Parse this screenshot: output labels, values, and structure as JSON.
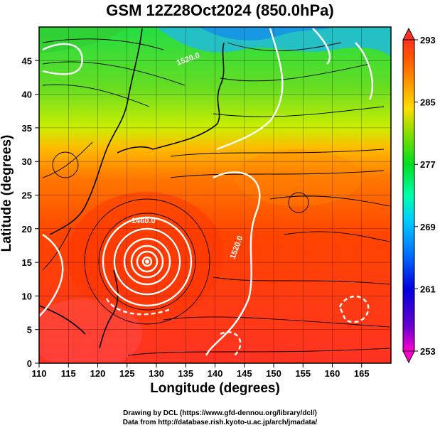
{
  "title": "GSM 12Z28Oct2024 (850.0hPa)",
  "xlabel": "Longitude (degrees)",
  "ylabel": "Latitude  (degrees)",
  "credits": [
    "Drawing by DCL (https://www.gfd-dennou.org/library/dcl/)",
    "Data from http://database.rish.kyoto-u.ac.jp/arch/jmadata/"
  ],
  "map": {
    "lon_range": [
      110,
      170
    ],
    "lat_range": [
      0,
      50
    ],
    "x_ticks": [
      "110",
      "115",
      "120",
      "125",
      "130",
      "135",
      "140",
      "145",
      "150",
      "155",
      "160",
      "165"
    ],
    "y_ticks": [
      "0",
      "5",
      "10",
      "15",
      "20",
      "25",
      "30",
      "35",
      "40",
      "45"
    ],
    "grid": true,
    "field": "temperature (K) shaded, geopotential height contours (white), wind streamlines (black)",
    "contour_labels": [
      "1460.0",
      "1520.0",
      "1520.0"
    ],
    "typhoon_center": {
      "lon": 128,
      "lat": 17
    }
  },
  "colorbar": {
    "min": 253,
    "max": 293,
    "tick_labels": [
      "293",
      "285",
      "277",
      "269",
      "261",
      "253"
    ],
    "colors": [
      "#ff00cc",
      "#5500cc",
      "#0000dd",
      "#0066ff",
      "#00ccff",
      "#00ffcc",
      "#00dd33",
      "#33cc00",
      "#99dd00",
      "#ccee00",
      "#ffdd00",
      "#ff9900",
      "#ff6600",
      "#ff3300"
    ]
  }
}
